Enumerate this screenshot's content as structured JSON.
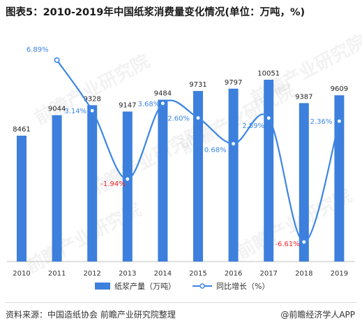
{
  "title": "图表5：2010-2019年中国纸浆消费量变化情况(单位：万吨，%)",
  "source": "资料来源：中国造纸协会 前瞻产业研究院整理",
  "brand": "@前瞻经济学人APP",
  "watermark": "前瞻产业研究院",
  "colors": {
    "bar": "#3d7fdc",
    "line": "#3d86e4",
    "negative": "#e8262a",
    "positive_label": "#3d86e4"
  },
  "chart_data": {
    "type": "bar",
    "categories": [
      "2010",
      "2011",
      "2012",
      "2013",
      "2014",
      "2015",
      "2016",
      "2017",
      "2018",
      "2019"
    ],
    "series": [
      {
        "name": "纸浆产量（万吨）",
        "type": "bar",
        "values": [
          8461,
          9044,
          9328,
          9147,
          9484,
          9731,
          9797,
          10051,
          9387,
          9609
        ],
        "labels": [
          "8461",
          "9044",
          "9328",
          "9147",
          "9484",
          "9731",
          "9797",
          "10051",
          "9387",
          "9609"
        ]
      },
      {
        "name": "同比增长（%）",
        "type": "line",
        "axis": "secondary",
        "values": [
          null,
          6.89,
          3.14,
          -1.94,
          3.68,
          2.6,
          0.68,
          2.59,
          -6.61,
          2.36
        ],
        "labels": [
          "",
          "6.89%",
          "3.14%",
          "-1.94%",
          "3.68%",
          "2.60%",
          "0.68%",
          "2.59%",
          "-6.61%",
          "2.36%"
        ]
      }
    ],
    "legend_position": "bottom",
    "grid": false
  }
}
